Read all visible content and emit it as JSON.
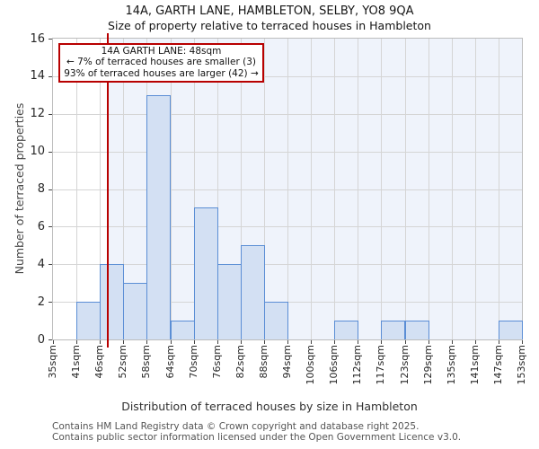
{
  "header": {
    "title": "14A, GARTH LANE, HAMBLETON, SELBY, YO8 9QA",
    "subtitle": "Size of property relative to terraced houses in Hambleton"
  },
  "footer": {
    "line1": "Contains HM Land Registry data © Crown copyright and database right 2025.",
    "line2": "Contains public sector information licensed under the Open Government Licence v3.0."
  },
  "chart_data": {
    "type": "bar",
    "title": "14A, GARTH LANE, HAMBLETON, SELBY, YO8 9QA",
    "subtitle": "Size of property relative to terraced houses in Hambleton",
    "xlabel": "Distribution of terraced houses by size in Hambleton",
    "ylabel": "Number of terraced properties",
    "bin_edges_sqm": [
      35,
      41,
      46,
      52,
      58,
      64,
      70,
      76,
      82,
      88,
      94,
      100,
      106,
      112,
      117,
      123,
      129,
      135,
      141,
      147,
      153
    ],
    "x_tick_labels": [
      "35sqm",
      "41sqm",
      "46sqm",
      "52sqm",
      "58sqm",
      "64sqm",
      "70sqm",
      "76sqm",
      "82sqm",
      "88sqm",
      "94sqm",
      "100sqm",
      "106sqm",
      "112sqm",
      "117sqm",
      "123sqm",
      "129sqm",
      "135sqm",
      "141sqm",
      "147sqm",
      "153sqm"
    ],
    "values": [
      0,
      2,
      4,
      3,
      13,
      1,
      7,
      4,
      5,
      2,
      0,
      0,
      1,
      0,
      1,
      1,
      0,
      0,
      0,
      1
    ],
    "yticks": [
      0,
      2,
      4,
      6,
      8,
      10,
      12,
      14,
      16
    ],
    "ylim": [
      0,
      16
    ],
    "grid": true,
    "legend": null,
    "marker": {
      "sqm": 48,
      "smaller_pct": "7%",
      "smaller_count": 3,
      "larger_pct": "93%",
      "larger_count": 42
    },
    "annotation": {
      "line1": "14A GARTH LANE: 48sqm",
      "line2": "← 7% of terraced houses are smaller (3)",
      "line3": "93% of terraced houses are larger (42) →"
    },
    "colors": {
      "bar_fill": "#d3e0f3",
      "bar_edge": "#5b8ed5",
      "marker_line": "#b80000",
      "callout_border": "#b80000",
      "shade_region": "#eff3fb",
      "grid": "#d5d5d5",
      "frame": "#bcbcbc"
    }
  }
}
